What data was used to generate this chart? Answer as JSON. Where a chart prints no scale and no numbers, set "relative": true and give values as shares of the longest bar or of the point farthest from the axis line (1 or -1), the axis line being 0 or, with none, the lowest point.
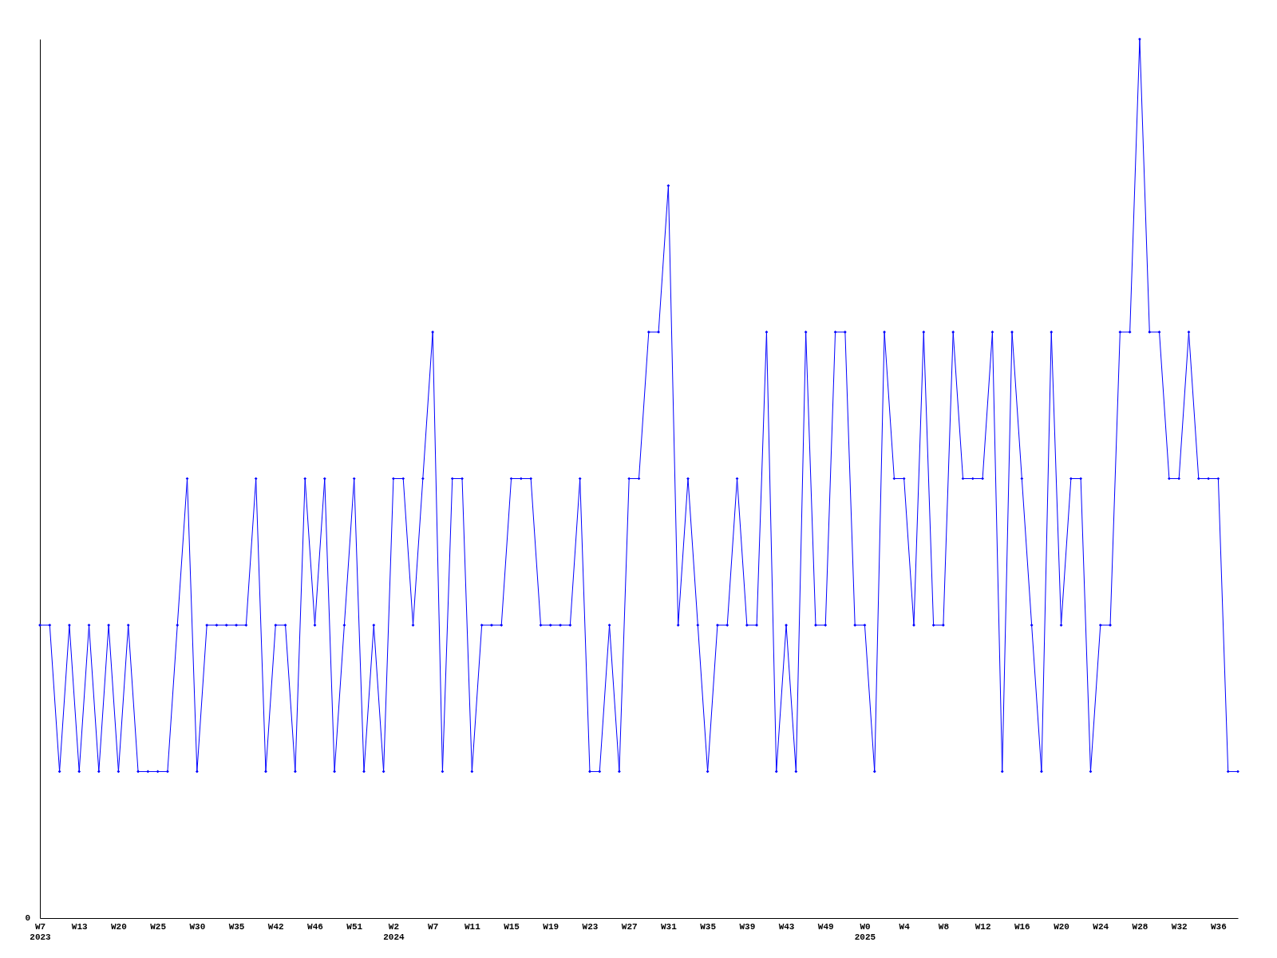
{
  "chart_data": {
    "type": "line",
    "relative": true,
    "marker": "diamond",
    "line_style": "solid",
    "grid": false,
    "annotations": [
      "0"
    ],
    "categories": [
      "W7\n2023",
      null,
      null,
      null,
      "W13",
      null,
      null,
      null,
      "W20",
      null,
      null,
      null,
      "W25",
      null,
      null,
      null,
      "W30",
      null,
      null,
      null,
      "W35",
      null,
      null,
      null,
      "W42",
      null,
      null,
      null,
      "W46",
      null,
      null,
      null,
      "W51",
      null,
      null,
      null,
      "W2\n2024",
      null,
      null,
      null,
      "W7",
      null,
      null,
      null,
      "W11",
      null,
      null,
      null,
      "W15",
      null,
      null,
      null,
      "W19",
      null,
      null,
      null,
      "W23",
      null,
      null,
      null,
      "W27",
      null,
      null,
      null,
      "W31",
      null,
      null,
      null,
      "W35",
      null,
      null,
      null,
      "W39",
      null,
      null,
      null,
      "W43",
      null,
      null,
      null,
      "W49",
      null,
      null,
      null,
      "W0\n2025",
      null,
      null,
      null,
      "W4",
      null,
      null,
      null,
      "W8",
      null,
      null,
      null,
      "W12",
      null,
      null,
      null,
      "W16",
      null,
      null,
      null,
      "W20",
      null,
      null,
      null,
      "W24",
      null,
      null,
      null,
      "W28",
      null,
      null,
      null,
      "W32",
      null,
      null,
      null,
      "W36",
      null,
      null
    ],
    "series": [
      {
        "color": "#0000ff",
        "values": [
          0.3333,
          0.3333,
          0.1667,
          0.3333,
          0.1667,
          0.3333,
          0.1667,
          0.3333,
          0.1667,
          0.3333,
          0.1667,
          0.1667,
          0.1667,
          0.1667,
          0.3333,
          0.5,
          0.1667,
          0.3333,
          0.3333,
          0.3333,
          0.3333,
          0.3333,
          0.5,
          0.1667,
          0.3333,
          0.3333,
          0.1667,
          0.5,
          0.3333,
          0.5,
          0.1667,
          0.3333,
          0.5,
          0.1667,
          0.3333,
          0.1667,
          0.5,
          0.5,
          0.3333,
          0.5,
          0.6667,
          0.1667,
          0.5,
          0.5,
          0.1667,
          0.3333,
          0.3333,
          0.3333,
          0.5,
          0.5,
          0.5,
          0.3333,
          0.3333,
          0.3333,
          0.3333,
          0.5,
          0.1667,
          0.1667,
          0.3333,
          0.1667,
          0.5,
          0.5,
          0.6667,
          0.6667,
          0.8333,
          0.3333,
          0.5,
          0.3333,
          0.1667,
          0.3333,
          0.3333,
          0.5,
          0.3333,
          0.3333,
          0.6667,
          0.1667,
          0.3333,
          0.1667,
          0.6667,
          0.3333,
          0.3333,
          0.6667,
          0.6667,
          0.3333,
          0.3333,
          0.1667,
          0.6667,
          0.5,
          0.5,
          0.3333,
          0.6667,
          0.3333,
          0.3333,
          0.6667,
          0.5,
          0.5,
          0.5,
          0.6667,
          0.1667,
          0.6667,
          0.5,
          0.3333,
          0.1667,
          0.6667,
          0.3333,
          0.5,
          0.5,
          0.1667,
          0.3333,
          0.3333,
          0.6667,
          0.6667,
          1,
          0.6667,
          0.6667,
          0.5,
          0.5,
          0.6667,
          0.5,
          0.5,
          0.5,
          0.1667,
          0.1667
        ]
      }
    ]
  }
}
